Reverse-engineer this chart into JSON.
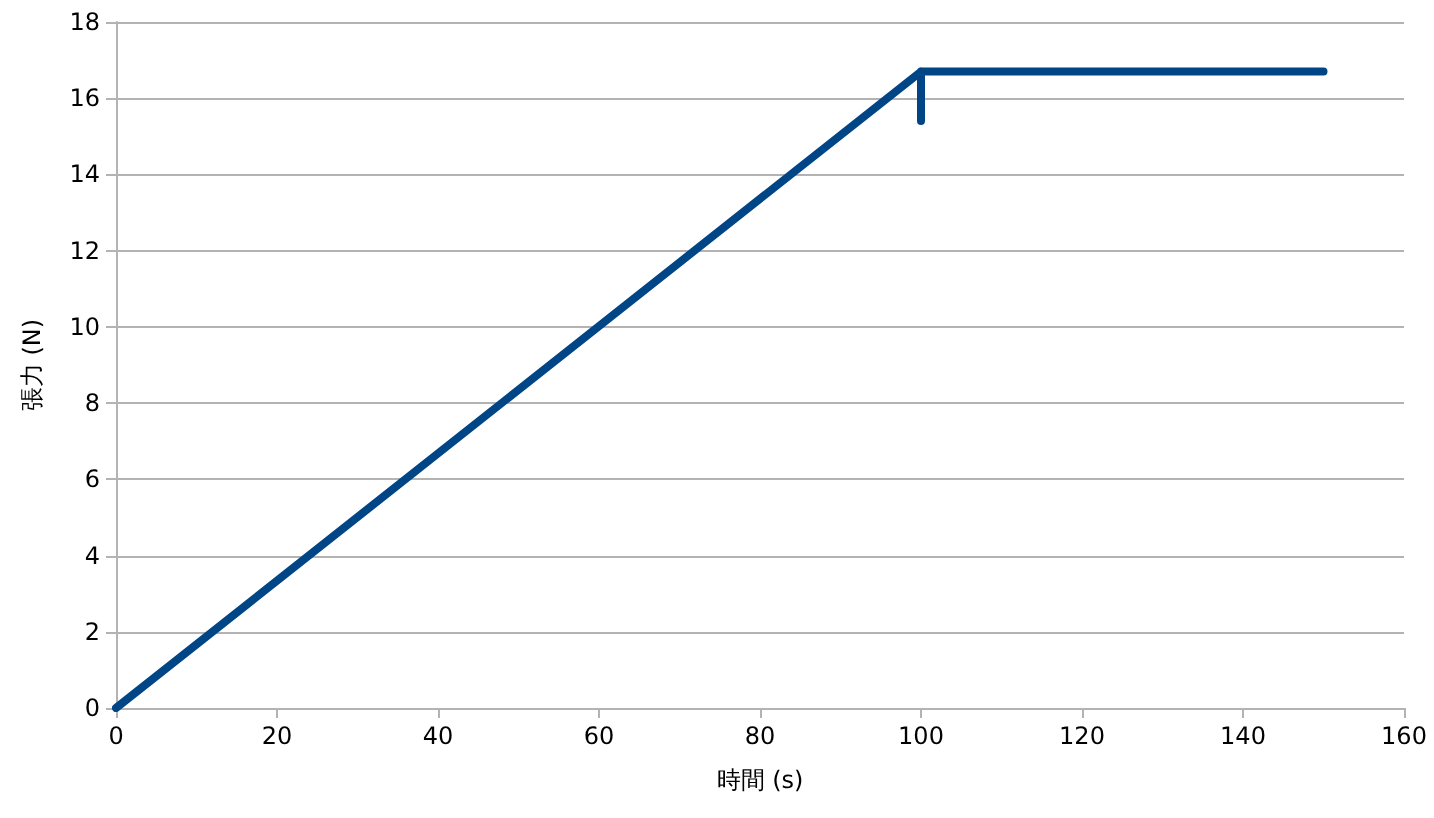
{
  "chart_data": {
    "type": "line",
    "xlabel": "時間 (s)",
    "ylabel": "張力 (N)",
    "series": [
      {
        "color": "#004586",
        "x": [
          0,
          100,
          100,
          100,
          150
        ],
        "values": [
          0,
          16.7,
          15.4,
          16.7,
          16.7
        ]
      }
    ],
    "xlim": [
      0,
      160
    ],
    "xticks": [
      0,
      20,
      40,
      60,
      80,
      100,
      120,
      140,
      160
    ],
    "ylim": [
      0,
      18
    ],
    "yticks": [
      0,
      2,
      4,
      6,
      8,
      10,
      12,
      14,
      16,
      18
    ],
    "grid": "y",
    "marker": "none",
    "line_style": "solid"
  }
}
